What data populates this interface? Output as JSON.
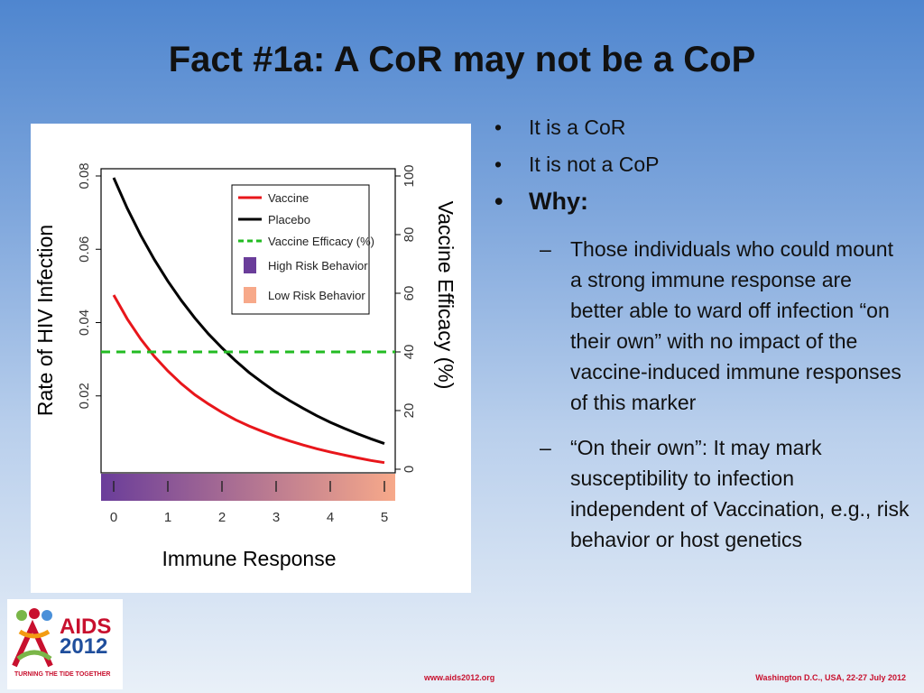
{
  "slide": {
    "title": "Fact #1a: A CoR may not be a CoP"
  },
  "bullets": {
    "items": [
      {
        "bullet": "•",
        "text": "It is a CoR"
      },
      {
        "bullet": "•",
        "text": "It is not a CoP"
      },
      {
        "bullet": "•",
        "text": "Why:"
      }
    ],
    "sub_items": [
      {
        "dash": "–",
        "text": "Those individuals who could mount a strong immune response are better able to ward off infection “on their own” with no impact of the vaccine-induced immune responses of this marker"
      },
      {
        "dash": "–",
        "text": "“On their own”: It may mark susceptibility to infection independent of Vaccination, e.g., risk behavior or host genetics"
      }
    ]
  },
  "footer": {
    "logo_word1": "AIDS",
    "logo_word2": "2012",
    "logo_tagline": "TURNING THE TIDE TOGETHER",
    "url": "www.aids2012.org",
    "place_date": "Washington D.C., USA, 22-27 July 2012"
  },
  "chart_data": {
    "type": "line",
    "xlabel": "Immune Response",
    "ylabel": "Rate of HIV Infection",
    "y2label": "Vaccine Efficacy (%)",
    "xlim": [
      0,
      5
    ],
    "ylim": [
      0,
      0.08
    ],
    "y2lim": [
      0,
      100
    ],
    "x_ticks": [
      "0",
      "1",
      "2",
      "3",
      "4",
      "5"
    ],
    "y_ticks": [
      "0.02",
      "0.04",
      "0.06",
      "0.08"
    ],
    "y2_ticks": [
      "0",
      "20",
      "40",
      "60",
      "80",
      "100"
    ],
    "x": [
      0,
      0.25,
      0.5,
      0.75,
      1,
      1.25,
      1.5,
      1.75,
      2,
      2.25,
      2.5,
      2.75,
      3,
      3.25,
      3.5,
      3.75,
      4,
      4.25,
      4.5,
      4.75,
      5
    ],
    "series": [
      {
        "name": "Vaccine",
        "color": "#e8161b",
        "axis": "left",
        "values": [
          0.0475,
          0.041,
          0.0355,
          0.0308,
          0.0268,
          0.0233,
          0.0203,
          0.0178,
          0.0155,
          0.0135,
          0.0118,
          0.0103,
          0.0089,
          0.0077,
          0.0066,
          0.0056,
          0.0047,
          0.0039,
          0.0031,
          0.0024,
          0.0018
        ]
      },
      {
        "name": "Placebo",
        "color": "#000000",
        "axis": "left",
        "values": [
          0.0795,
          0.0712,
          0.0638,
          0.0572,
          0.0513,
          0.046,
          0.0412,
          0.0369,
          0.0331,
          0.0296,
          0.0264,
          0.0236,
          0.021,
          0.0187,
          0.0166,
          0.0146,
          0.0128,
          0.0112,
          0.0097,
          0.0083,
          0.007
        ]
      },
      {
        "name": "Vaccine Efficacy (%)",
        "color": "#22bb22",
        "axis": "right",
        "dashed": true,
        "values": [
          40,
          40,
          40,
          40,
          40,
          40,
          40,
          40,
          40,
          40,
          40,
          40,
          40,
          40,
          40,
          40,
          40,
          40,
          40,
          40,
          40
        ]
      }
    ],
    "legend": {
      "placement": "top-right",
      "items": [
        {
          "label": "Vaccine",
          "kind": "line",
          "color": "#e8161b"
        },
        {
          "label": "Placebo",
          "kind": "line",
          "color": "#000000"
        },
        {
          "label": "Vaccine Efficacy (%)",
          "kind": "dashed",
          "color": "#22bb22"
        },
        {
          "label": "High Risk Behavior",
          "kind": "box",
          "color": "#6a3d9a"
        },
        {
          "label": "Low Risk Behavior",
          "kind": "box",
          "color": "#f7a98a"
        }
      ]
    },
    "gradient_bar": {
      "from_color": "#6a3d9a",
      "to_color": "#f7a98a"
    },
    "grid": false
  }
}
